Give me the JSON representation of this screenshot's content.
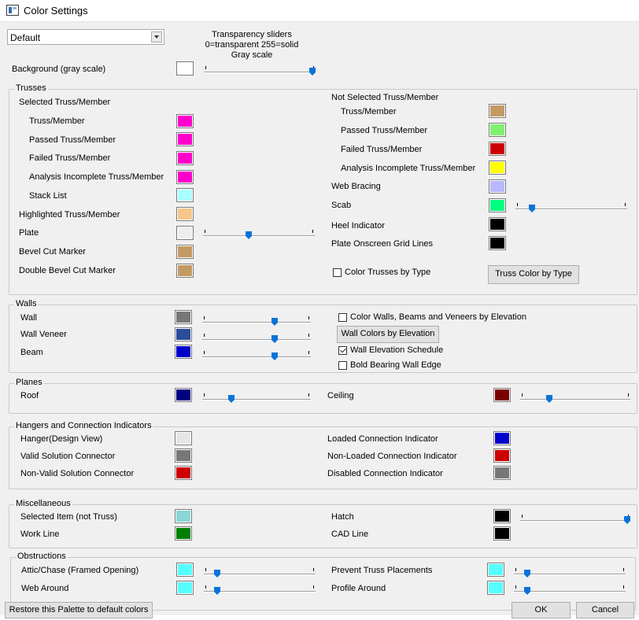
{
  "window": {
    "title": "Color Settings"
  },
  "palette": {
    "selected": "Default"
  },
  "transparency_note": [
    "Transparency sliders",
    "0=transparent 255=solid",
    "Gray scale"
  ],
  "background": {
    "label": "Background (gray scale)",
    "color": "#ffffff",
    "slider": 1.0
  },
  "trusses": {
    "title": "Trusses",
    "selected_title": "Selected Truss/Member",
    "selected_items": [
      {
        "label": "Truss/Member",
        "color": "#ff00cc"
      },
      {
        "label": "Passed Truss/Member",
        "color": "#ff00cc"
      },
      {
        "label": "Failed Truss/Member",
        "color": "#ff00cc"
      },
      {
        "label": "Analysis Incomplete Truss/Member",
        "color": "#ff00cc"
      },
      {
        "label": "Stack List",
        "color": "#aaffff"
      }
    ],
    "highlighted": {
      "label": "Highlighted Truss/Member",
      "color": "#f6c68a"
    },
    "plate": {
      "label": "Plate",
      "color": "#eeeeee",
      "slider": 0.4
    },
    "bevel": {
      "label": "Bevel Cut Marker",
      "color": "#c49a63"
    },
    "double_bevel": {
      "label": "Double Bevel Cut Marker",
      "color": "#c49a63"
    },
    "not_selected_title": "Not Selected Truss/Member",
    "not_selected_items": [
      {
        "label": "Truss/Member",
        "color": "#c49a63"
      },
      {
        "label": "Passed Truss/Member",
        "color": "#80f070"
      },
      {
        "label": "Failed Truss/Member",
        "color": "#cc0000"
      },
      {
        "label": "Analysis Incomplete Truss/Member",
        "color": "#ffff00"
      }
    ],
    "web_bracing": {
      "label": "Web Bracing",
      "color": "#b8b8ff"
    },
    "scab": {
      "label": "Scab",
      "color": "#00ff80",
      "slider": 0.13
    },
    "heel": {
      "label": "Heel Indicator",
      "color": "#000000"
    },
    "grid_lines": {
      "label": "Plate Onscreen Grid Lines",
      "color": "#000000"
    },
    "color_by_type": {
      "label": "Color Trusses by Type",
      "checked": false
    },
    "type_button": "Truss Color by Type"
  },
  "walls": {
    "title": "Walls",
    "items": [
      {
        "label": "Wall",
        "color": "#777777",
        "slider": 0.68
      },
      {
        "label": "Wall Veneer",
        "color": "#2b4b9b",
        "slider": 0.68
      },
      {
        "label": "Beam",
        "color": "#0000cc",
        "slider": 0.68
      }
    ],
    "by_elevation": {
      "label": "Color Walls, Beams and Veneers by Elevation",
      "checked": false
    },
    "elevation_button": "Wall Colors by Elevation",
    "schedule": {
      "label": "Wall Elevation Schedule",
      "checked": true
    },
    "bold_edge": {
      "label": "Bold Bearing Wall Edge",
      "checked": false
    }
  },
  "planes": {
    "title": "Planes",
    "roof": {
      "label": "Roof",
      "color": "#000080",
      "slider": 0.25
    },
    "ceiling": {
      "label": "Ceiling",
      "color": "#7a0000",
      "slider": 0.25
    }
  },
  "hangers": {
    "title": "Hangers and Connection Indicators",
    "left": [
      {
        "label": "Hanger(Design View)",
        "color": "#e6e6e6"
      },
      {
        "label": "Valid Solution Connector",
        "color": "#777777"
      },
      {
        "label": "Non-Valid Solution Connector",
        "color": "#cc0000"
      }
    ],
    "right": [
      {
        "label": "Loaded Connection Indicator",
        "color": "#0000cc"
      },
      {
        "label": "Non-Loaded Connection Indicator",
        "color": "#cc0000"
      },
      {
        "label": "Disabled Connection Indicator",
        "color": "#777777"
      }
    ]
  },
  "misc": {
    "title": "Miscellaneous",
    "selected_item": {
      "label": "Selected Item (not Truss)",
      "color": "#8ad6d6"
    },
    "work_line": {
      "label": "Work Line",
      "color": "#008000"
    },
    "hatch": {
      "label": "Hatch",
      "color": "#000000",
      "slider": 1.0
    },
    "cad_line": {
      "label": "CAD Line",
      "color": "#000000"
    }
  },
  "obstructions": {
    "title": "Obstructions",
    "attic": {
      "label": "Attic/Chase (Framed Opening)",
      "color": "#55ffff",
      "slider": 0.1
    },
    "web_around": {
      "label": "Web Around",
      "color": "#55ffff",
      "slider": 0.1
    },
    "prevent": {
      "label": "Prevent Truss Placements",
      "color": "#55ffff",
      "slider": 0.1
    },
    "profile": {
      "label": "Profile Around",
      "color": "#55ffff",
      "slider": 0.1
    }
  },
  "footer": {
    "restore": "Restore this Palette to default colors",
    "ok": "OK",
    "cancel": "Cancel"
  }
}
